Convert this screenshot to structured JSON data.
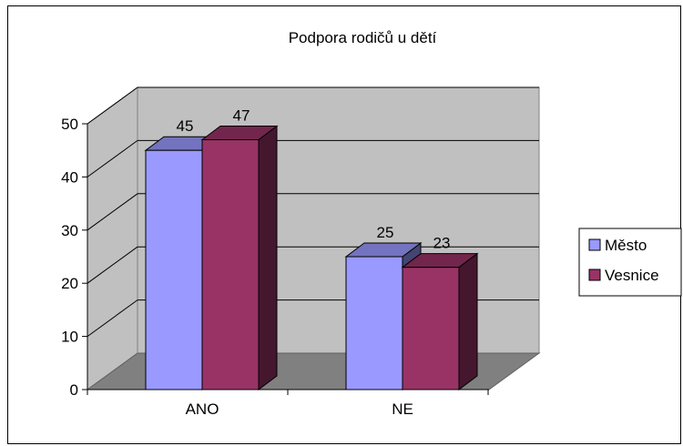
{
  "chart_data": {
    "type": "bar",
    "title": "Podpora rodičů u dětí",
    "categories": [
      "ANO",
      "NE"
    ],
    "series": [
      {
        "name": "Město",
        "values": [
          45,
          47
        ],
        "color": "#9999FF"
      },
      {
        "name": "Vesnice",
        "values": [
          25,
          23
        ],
        "color": "#993366"
      }
    ],
    "series_fixed": true,
    "ylim": [
      0,
      50
    ],
    "yticks": [
      0,
      10,
      20,
      30,
      40,
      50
    ],
    "grid": true,
    "legend": "right",
    "xlabel": "",
    "ylabel": ""
  }
}
